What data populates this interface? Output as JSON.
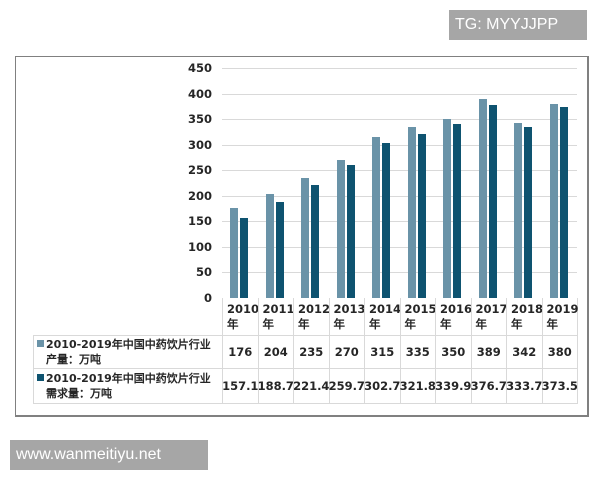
{
  "watermarks": {
    "top": "TG: MYYJJPP",
    "bottom": "www.wanmeitiyu.net"
  },
  "colors": {
    "production": "#6a93a8",
    "demand": "#0e5370",
    "grid": "#d9d9d9",
    "frame": "#808080"
  },
  "chart_data": {
    "type": "bar",
    "title": "",
    "xlabel": "",
    "ylabel": "",
    "ylim": [
      0,
      450
    ],
    "yticks": [
      0,
      50,
      100,
      150,
      200,
      250,
      300,
      350,
      400,
      450
    ],
    "grid": true,
    "legend_position": "data-table-below",
    "categories": [
      "2010年",
      "2011年",
      "2012年",
      "2013年",
      "2014年",
      "2015年",
      "2016年",
      "2017年",
      "2018年",
      "2019年"
    ],
    "series": [
      {
        "name": "2010-2019年中国中药饮片行业产量：万吨",
        "color": "#6a93a8",
        "values": [
          176,
          204,
          235,
          270,
          315,
          335,
          350,
          389,
          342,
          380
        ]
      },
      {
        "name": "2010-2019年中国中药饮片行业需求量：万吨",
        "color": "#0e5370",
        "values": [
          157.1,
          188.7,
          221.4,
          259.7,
          302.7,
          321.8,
          339.9,
          376.7,
          333.7,
          373.5
        ]
      }
    ]
  },
  "table": {
    "years": [
      {
        "y": "2010",
        "s": "年"
      },
      {
        "y": "2011",
        "s": "年"
      },
      {
        "y": "2012",
        "s": "年"
      },
      {
        "y": "2013",
        "s": "年"
      },
      {
        "y": "2014",
        "s": "年"
      },
      {
        "y": "2015",
        "s": "年"
      },
      {
        "y": "2016",
        "s": "年"
      },
      {
        "y": "2017",
        "s": "年"
      },
      {
        "y": "2018",
        "s": "年"
      },
      {
        "y": "2019",
        "s": "年"
      }
    ],
    "rows": [
      {
        "line1": "2010-2019年中国中药饮片行业",
        "line2": "产量：万吨",
        "values": [
          "176",
          "204",
          "235",
          "270",
          "315",
          "335",
          "350",
          "389",
          "342",
          "380"
        ]
      },
      {
        "line1": "2010-2019年中国中药饮片行业",
        "line2": "需求量：万吨",
        "values": [
          "157.1",
          "188.7",
          "221.4",
          "259.7",
          "302.7",
          "321.8",
          "339.9",
          "376.7",
          "333.7",
          "373.5"
        ]
      }
    ]
  }
}
